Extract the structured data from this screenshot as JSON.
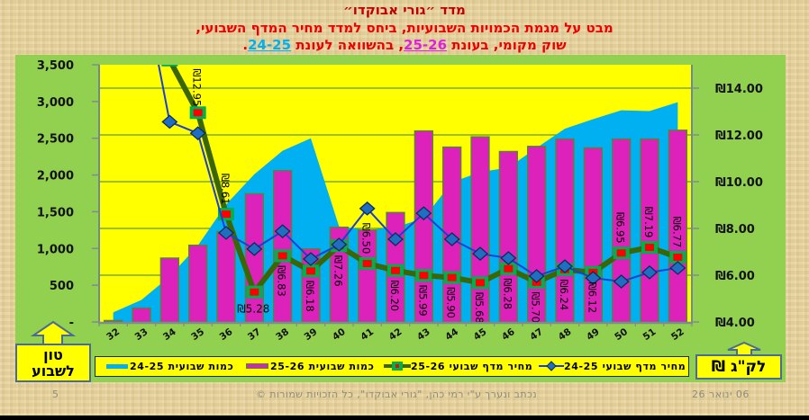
{
  "header": {
    "title_line1": "מדד ״גורי אבוקדו״",
    "title_line2": "מבט על מגמת הכמויות השבועיות, ביחס למדד מחיר המדף השבועי,",
    "title_line3_prefix": "שוק מקומי, בעונת ",
    "season_current": "25-26",
    "title_line3_middle": ", בהשוואה לעונת ",
    "season_previous": "24-25",
    "title_line3_suffix": "."
  },
  "colors": {
    "title_dark_red": "#C00000",
    "title_red": "#EE0000",
    "season_current": "#DD22DD",
    "season_previous": "#00B0F0",
    "panel_green": "#92D050",
    "plot_yellow": "#FFFF00"
  },
  "units": {
    "left_line1": "טון",
    "left_line2": "לשבוע",
    "right": "לק\"ג ₪"
  },
  "legend": {
    "items": [
      {
        "label": "כמות שבועית 24-25",
        "swatch": "area"
      },
      {
        "label": "כמות שבועית 25-26",
        "swatch": "bar"
      },
      {
        "label": "מחיר מדף שבועי 25-26",
        "swatch": "line-square"
      },
      {
        "label": "מחיר מדף שבועי 24-25",
        "swatch": "line-diamond"
      }
    ]
  },
  "footer": {
    "page_number": "5",
    "credit": "נכתב ונערך ע\"י רמי כהן, \"גורי אבוקדו\", כל הזכויות שמורות ©",
    "date": "06 ינואר 26"
  },
  "chart_data": {
    "type": "bar",
    "combo": true,
    "title": "מדד ״גורי אבוקדו״",
    "subtitle": "מבט על מגמת הכמויות השבועיות, ביחס למדד מחיר המדף השבועי, שוק מקומי, בעונת 25-26, בהשוואה לעונת 24-25.",
    "xlabel": "",
    "ylabel_left": "טון לשבוע",
    "ylabel_right": "₪ לק\"ג",
    "categories": [
      "32",
      "33",
      "34",
      "35",
      "36",
      "37",
      "38",
      "39",
      "40",
      "41",
      "42",
      "43",
      "44",
      "45",
      "46",
      "47",
      "48",
      "49",
      "50",
      "51",
      "52"
    ],
    "ylim_left": [
      0,
      3500
    ],
    "ylim_right": [
      4,
      15
    ],
    "yticks_left": [
      0,
      500,
      1000,
      1500,
      2000,
      2500,
      3000,
      3500
    ],
    "yticks_left_labels": [
      "-",
      "500",
      "1,000",
      "1,500",
      "2,000",
      "2,500",
      "3,000",
      "3,500"
    ],
    "yticks_right": [
      4,
      6,
      8,
      10,
      12,
      14
    ],
    "yticks_right_labels": [
      "₪4.00",
      "₪6.00",
      "₪8.00",
      "₪10.00",
      "₪12.00",
      "₪14.00"
    ],
    "grid": true,
    "legend_position": "bottom",
    "series": [
      {
        "name": "כמות שבועית 24-25",
        "type": "area",
        "axis": "left",
        "color": "#00B0F0",
        "values": [
          130,
          300,
          620,
          1040,
          1600,
          2010,
          2330,
          2500,
          1300,
          1250,
          1290,
          1410,
          1900,
          2040,
          2100,
          2370,
          2630,
          2760,
          2880,
          2870,
          2990
        ]
      },
      {
        "name": "כמות שבועית 25-26",
        "type": "bar",
        "axis": "left",
        "color": "#DD22BB",
        "values": [
          20,
          190,
          870,
          1045,
          1230,
          1745,
          2060,
          995,
          1290,
          1250,
          1490,
          2600,
          2380,
          2520,
          2320,
          2390,
          2490,
          2370,
          2490,
          2490,
          2610
        ]
      },
      {
        "name": "מחיר מדף שבועי 25-26",
        "type": "line",
        "axis": "right",
        "color": "#3A6605",
        "marker": "square",
        "values": [
          null,
          null,
          15.2,
          12.95,
          8.61,
          5.28,
          6.83,
          6.18,
          7.26,
          6.5,
          6.2,
          5.99,
          5.9,
          5.68,
          6.28,
          5.7,
          6.24,
          6.12,
          6.95,
          7.19,
          6.77
        ],
        "data_labels": [
          "",
          "",
          "",
          "₪12.95",
          "₪8.61",
          "₪5.28",
          "₪6.83",
          "₪6.18",
          "₪7.26",
          "₪6.50",
          "₪6.20",
          "₪5.99",
          "₪5.90",
          "₪5.68",
          "₪6.28",
          "₪5.70",
          "₪6.24",
          "₪6.12",
          "₪6.95",
          "₪7.19",
          "₪6.77"
        ],
        "data_label_positions": [
          "",
          "",
          "",
          "above",
          "above",
          "below-horizontal",
          "below",
          "below",
          "below",
          "above",
          "below",
          "below",
          "below",
          "below",
          "below",
          "below",
          "below",
          "below",
          "above",
          "above",
          "above"
        ]
      },
      {
        "name": "מחיר מדף שבועי 24-25",
        "type": "line",
        "axis": "right",
        "color": "#1C3FD4",
        "marker": "diamond",
        "values": [
          null,
          18.8,
          12.56,
          12.07,
          7.81,
          7.12,
          7.88,
          6.69,
          7.31,
          8.85,
          7.54,
          8.65,
          7.54,
          6.92,
          6.73,
          5.96,
          6.38,
          5.88,
          5.73,
          6.12,
          6.31
        ]
      }
    ]
  }
}
